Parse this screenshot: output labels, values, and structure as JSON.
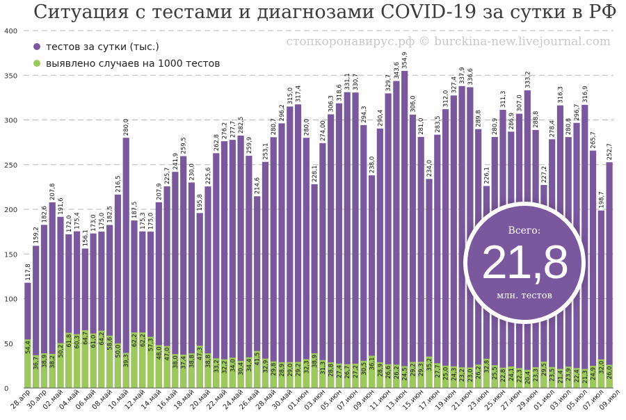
{
  "chart_data": {
    "type": "bar",
    "title": "Ситуация с тестами и диагнозами COVID-19 за сутки в РФ",
    "credit": "стопкоронавирус.рф © burckina-new.livejournal.com",
    "ylim": [
      0,
      400
    ],
    "yticks": [
      0,
      50,
      100,
      150,
      200,
      250,
      300,
      350,
      400
    ],
    "grid": true,
    "legend_position": "top-left",
    "series": [
      {
        "name": "тестов за сутки (тыс.)",
        "color": "#7a589e",
        "values": [
          117.8,
          159.2,
          182.6,
          207.8,
          191.6,
          172.0,
          175.4,
          156.1,
          173.0,
          175.0,
          182.5,
          216.5,
          280.0,
          187.5,
          175.3,
          175.0,
          207.9,
          225.7,
          241.9,
          259.5,
          230.0,
          195.8,
          225.6,
          262.8,
          276.2,
          277.7,
          282.5,
          259.9,
          214.6,
          253.1,
          280.7,
          296.2,
          315.0,
          317.4,
          280.0,
          228.1,
          274.0,
          306.3,
          318.6,
          331.1,
          330.7,
          294.3,
          238.0,
          290.4,
          329.7,
          343.6,
          354.9,
          306.0,
          281.0,
          234.0,
          283.5,
          312.0,
          327.4,
          337.9,
          336.6,
          289.8,
          226.1,
          280.9,
          311.3,
          286.9,
          307.0,
          333.2,
          288.8,
          227.2,
          278.4,
          316.3,
          280.8,
          296.7,
          316.9,
          265.7,
          198.7,
          252.7
        ],
        "labels": [
          "117,8",
          "159,2",
          "182,6",
          "207,8",
          "191,6",
          "172,0",
          "175,4",
          "156,1",
          "173,0",
          "175,0",
          "182,5",
          "216,5",
          "280,0",
          "187,5",
          "175,3",
          "175,0",
          "207,9",
          "225,7",
          "241,9",
          "259,5",
          "230,0",
          "195,8",
          "225,6",
          "262,8",
          "276,2",
          "277,7",
          "282,5",
          "259,9",
          "214,6",
          "253,1",
          "280,7",
          "296,2",
          "315,0",
          "317,4",
          "280,0",
          "228,1",
          "274,00",
          "306,3",
          "318,6",
          "331,1",
          "330,7",
          "294,3",
          "238,0",
          "290,4",
          "329,7",
          "343,6",
          "354,9",
          "306,0",
          "281,0",
          "234,0",
          "283,5",
          "312,0",
          "327,4",
          "337,9",
          "336,6",
          "289,8",
          "226,1",
          "280,9",
          "311,3",
          "286,9",
          "307,0",
          "333,2",
          "288,8",
          "227,2",
          "278,4",
          "316,3",
          "280,8",
          "296,7",
          "316,9",
          "265,7",
          "198,7",
          "252,7"
        ]
      },
      {
        "name": "выявлено случаев на 1000 тестов",
        "color": "#9dc85c",
        "values": [
          54.4,
          36.7,
          38.9,
          38.2,
          50.2,
          61.8,
          60.3,
          64.7,
          61.0,
          64.2,
          58.6,
          50.0,
          39.3,
          62.2,
          62.2,
          57.3,
          48.0,
          47.0,
          38.0,
          37.4,
          38.8,
          47.3,
          38.8,
          33.2,
          32.2,
          34.0,
          30.4,
          34.4,
          41.5,
          32.9,
          29.8,
          28.9,
          29.0,
          29.2,
          32.3,
          38.9,
          31.3,
          28.8,
          27.4,
          26.7,
          27.2,
          30.5,
          36.1,
          28.9,
          26.6,
          26.2,
          24.5,
          29.2,
          29.3,
          35.2,
          27.7,
          25.0,
          24.3,
          23.2,
          23.0,
          26.2,
          32.8,
          25.5,
          22.8,
          24.1,
          22.3,
          20.4,
          23.3,
          29.5,
          23.5,
          21.4,
          23.9,
          22.4,
          21.3,
          24.9,
          32.0,
          26.0
        ],
        "labels": [
          "54,4",
          "36,7",
          "38,9",
          "38,2",
          "50,2",
          "61,8",
          "60,3",
          "64,7",
          "61,0",
          "64,2",
          "58,6",
          "50,0",
          "39,3",
          "62,2",
          "62,2",
          "57,3",
          "48,0",
          "47,0",
          "38,0",
          "37,4",
          "38,8",
          "47,3",
          "38,8",
          "33,2",
          "32,2",
          "34,0",
          "30,4",
          "34,4",
          "41,5",
          "32,9",
          "29,8",
          "28,9",
          "29,0",
          "29,2",
          "32,3",
          "38,9",
          "31,3",
          "28,8",
          "27,4",
          "26,7",
          "27,2",
          "30,5",
          "36,1",
          "28,9",
          "26,6",
          "26,2",
          "24,5",
          "29,2",
          "29,3",
          "35,2",
          "27,7",
          "25,0",
          "24,3",
          "23,2",
          "23,0",
          "26,2",
          "32,8",
          "25,5",
          "22,8",
          "24,1",
          "22,3",
          "20,4",
          "23,3",
          "29,5",
          "23,5",
          "21,4",
          "23,9",
          "22,4",
          "21,3",
          "24,9",
          "32,0",
          "26,0"
        ]
      }
    ],
    "xtick_labels": [
      "28.апр",
      "30.апр",
      "02.май",
      "04.май",
      "06.май",
      "08.май",
      "10.май",
      "12.май",
      "14.май",
      "16.май",
      "18.май",
      "20.май",
      "22.май",
      "24.май",
      "26.май",
      "28.май",
      "30.май",
      "01.июн",
      "03.июн",
      "05.июн",
      "07.июн",
      "09.июн",
      "11.июн",
      "13.июн",
      "15.июн",
      "17.июн",
      "19.июн",
      "21.июн",
      "23.июн",
      "25.июн",
      "27.июн",
      "29.июн",
      "01.июл",
      "03.июл",
      "05.июл",
      "07.июл",
      "09.июл"
    ]
  },
  "total": {
    "label": "Всего:",
    "value": "21,8",
    "unit": "млн. тестов",
    "color": "#7a589e"
  }
}
